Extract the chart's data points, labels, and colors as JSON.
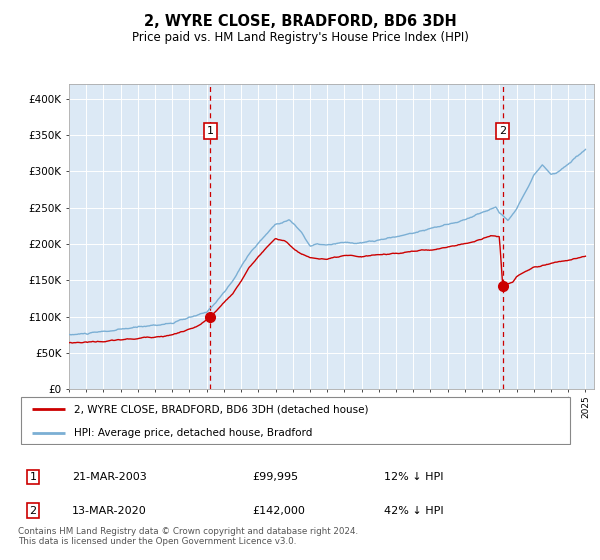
{
  "title": "2, WYRE CLOSE, BRADFORD, BD6 3DH",
  "subtitle": "Price paid vs. HM Land Registry's House Price Index (HPI)",
  "hpi_color": "#7bafd4",
  "price_color": "#cc0000",
  "plot_bg": "#dce9f5",
  "ylim": [
    0,
    420000
  ],
  "yticks": [
    0,
    50000,
    100000,
    150000,
    200000,
    250000,
    300000,
    350000,
    400000
  ],
  "ytick_labels": [
    "£0",
    "£50K",
    "£100K",
    "£150K",
    "£200K",
    "£250K",
    "£300K",
    "£350K",
    "£400K"
  ],
  "sale1_year": 2003.22,
  "sale1_price": 99995,
  "sale1_label": "1",
  "sale2_year": 2020.2,
  "sale2_price": 142000,
  "sale2_label": "2",
  "legend_line1": "2, WYRE CLOSE, BRADFORD, BD6 3DH (detached house)",
  "legend_line2": "HPI: Average price, detached house, Bradford",
  "table_row1_num": "1",
  "table_row1_date": "21-MAR-2003",
  "table_row1_price": "£99,995",
  "table_row1_hpi": "12% ↓ HPI",
  "table_row2_num": "2",
  "table_row2_date": "13-MAR-2020",
  "table_row2_price": "£142,000",
  "table_row2_hpi": "42% ↓ HPI",
  "footer": "Contains HM Land Registry data © Crown copyright and database right 2024.\nThis data is licensed under the Open Government Licence v3.0."
}
